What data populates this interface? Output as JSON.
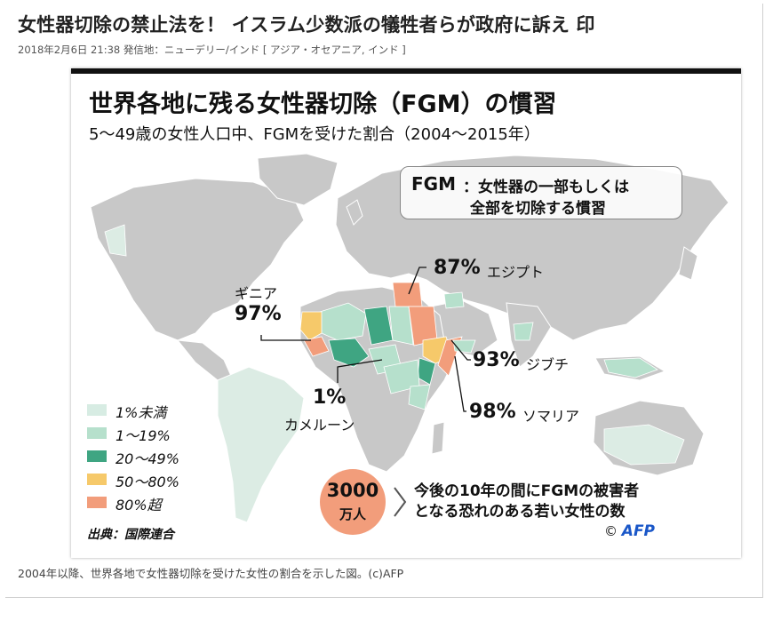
{
  "article": {
    "headline": "女性器切除の禁止法を！ イスラム少数派の犠牲者らが政府に訴え 印",
    "meta": "2018年2月6日 21:38  発信地：ニューデリー/インド [ アジア・オセアニア, インド ]",
    "caption": "2004年以降、世界各地で女性器切除を受けた女性の割合を示した図。(c)AFP"
  },
  "figure": {
    "title": "世界各地に残る女性器切除（FGM）の慣習",
    "subtitle": "5〜49歳の女性人口中、FGMを受けた割合（2004〜2015年）",
    "definition": {
      "term": "FGM",
      "line1": "：女性器の一部もしくは",
      "line2": "全部を切除する慣習"
    },
    "callouts": {
      "egypt": {
        "pct": "87%",
        "name": "エジプト"
      },
      "guinea": {
        "pct": "97%",
        "name": "ギニア"
      },
      "djibouti": {
        "pct": "93%",
        "name": "ジブチ"
      },
      "somalia": {
        "pct": "98%",
        "name": "ソマリア"
      },
      "cameroon": {
        "pct": "1%",
        "name": "カメルーン"
      }
    },
    "legend": [
      {
        "label": "1%未満",
        "color": "#d7ece3"
      },
      {
        "label": "1〜19%",
        "color": "#b6e0cc"
      },
      {
        "label": "20〜49%",
        "color": "#3fa582"
      },
      {
        "label": "50〜80%",
        "color": "#f6c96a"
      },
      {
        "label": "80%超",
        "color": "#f29d7b"
      }
    ],
    "source": "出典：国際連合",
    "future": {
      "count": "3000",
      "unit": "万人",
      "line1": "今後の10年の間にFGMの被害者",
      "line2": "となる恐れのある若い女性の数"
    },
    "credit_symbol": "©",
    "credit_logo": "AFP",
    "colors": {
      "land": "#c8c8c8",
      "ocean": "#ffffff",
      "border_line": "#111111"
    }
  }
}
